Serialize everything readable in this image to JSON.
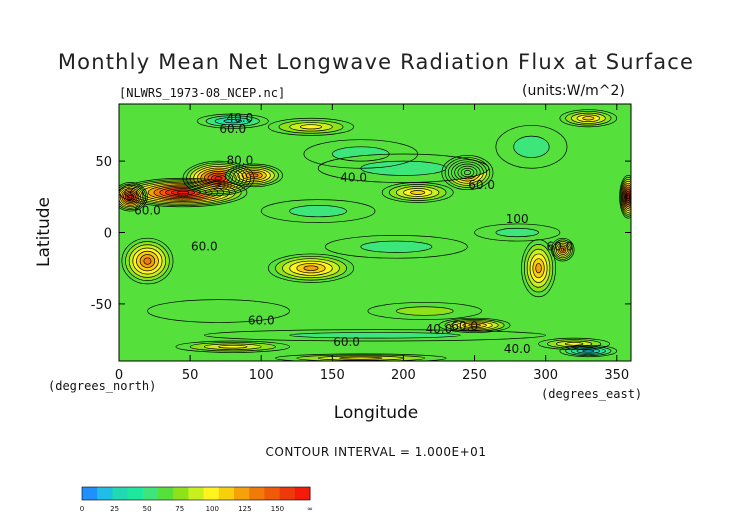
{
  "chart_data": {
    "type": "heatmap",
    "title": "Monthly Mean Net Longwave Radiation Flux at Surface",
    "subtitle_left": "[NLWRS_1973-08_NCEP.nc]",
    "subtitle_right": "(units:W/m^2)",
    "xlabel": "Longitude",
    "ylabel": "Latitude",
    "x_unit_label": "(degrees_east)",
    "y_unit_label": "(degrees_north)",
    "xlim": [
      0,
      360
    ],
    "ylim": [
      -90,
      90
    ],
    "x_ticks": [
      0,
      50,
      100,
      150,
      200,
      250,
      300,
      350
    ],
    "y_ticks": [
      -50,
      0,
      50
    ],
    "contour_interval_text": "CONTOUR INTERVAL = 1.000E+01",
    "contour_labels": [
      {
        "text": "40.0",
        "lon": 85,
        "lat": 80
      },
      {
        "text": "60.0",
        "lon": 80,
        "lat": 72
      },
      {
        "text": "80.0",
        "lon": 85,
        "lat": 50
      },
      {
        "text": "40.0",
        "lon": 165,
        "lat": 38
      },
      {
        "text": "60.0",
        "lon": 20,
        "lat": 15
      },
      {
        "text": "60.0",
        "lon": 60,
        "lat": -10
      },
      {
        "text": "60.0",
        "lon": 255,
        "lat": 33
      },
      {
        "text": "100",
        "lon": 280,
        "lat": 9
      },
      {
        "text": "60.0",
        "lon": 310,
        "lat": -10
      },
      {
        "text": "60.0",
        "lon": 100,
        "lat": -62
      },
      {
        "text": "60.0",
        "lon": 160,
        "lat": -77
      },
      {
        "text": "40.0",
        "lon": 225,
        "lat": -68
      },
      {
        "text": "60.0",
        "lon": 243,
        "lat": -66
      },
      {
        "text": "40.0",
        "lon": 280,
        "lat": -82
      }
    ],
    "features": [
      {
        "lon": 45,
        "lat": 28,
        "rx": 45,
        "ry": 10,
        "value": 150
      },
      {
        "lon": 70,
        "lat": 38,
        "rx": 25,
        "ry": 12,
        "value": 140
      },
      {
        "lon": 8,
        "lat": 25,
        "rx": 12,
        "ry": 10,
        "value": 140
      },
      {
        "lon": 95,
        "lat": 40,
        "rx": 20,
        "ry": 8,
        "value": 110
      },
      {
        "lon": 20,
        "lat": -20,
        "rx": 18,
        "ry": 16,
        "value": 115
      },
      {
        "lon": 135,
        "lat": -25,
        "rx": 30,
        "ry": 10,
        "value": 100
      },
      {
        "lon": 245,
        "lat": 42,
        "rx": 18,
        "ry": 12,
        "value": 125
      },
      {
        "lon": 210,
        "lat": 28,
        "rx": 25,
        "ry": 7,
        "value": 90
      },
      {
        "lon": 295,
        "lat": -25,
        "rx": 12,
        "ry": 20,
        "value": 105
      },
      {
        "lon": 312,
        "lat": -12,
        "rx": 8,
        "ry": 8,
        "value": 110
      },
      {
        "lon": 358,
        "lat": 25,
        "rx": 6,
        "ry": 15,
        "value": 150
      },
      {
        "lon": 250,
        "lat": -65,
        "rx": 25,
        "ry": 5,
        "value": 100
      },
      {
        "lon": 135,
        "lat": 74,
        "rx": 30,
        "ry": 6,
        "value": 85
      },
      {
        "lon": 330,
        "lat": 80,
        "rx": 20,
        "ry": 6,
        "value": 90
      },
      {
        "lon": 80,
        "lat": -80,
        "rx": 40,
        "ry": 4,
        "value": 85
      },
      {
        "lon": 170,
        "lat": -88,
        "rx": 60,
        "ry": 3,
        "value": 80
      },
      {
        "lon": 320,
        "lat": -78,
        "rx": 25,
        "ry": 4,
        "value": 85
      },
      {
        "lon": 80,
        "lat": 78,
        "rx": 25,
        "ry": 5,
        "value": 25
      },
      {
        "lon": 170,
        "lat": 55,
        "rx": 40,
        "ry": 10,
        "value": 40
      },
      {
        "lon": 200,
        "lat": 45,
        "rx": 60,
        "ry": 10,
        "value": 45
      },
      {
        "lon": 140,
        "lat": 15,
        "rx": 40,
        "ry": 8,
        "value": 45
      },
      {
        "lon": 290,
        "lat": 60,
        "rx": 25,
        "ry": 15,
        "value": 40
      },
      {
        "lon": 195,
        "lat": -10,
        "rx": 50,
        "ry": 8,
        "value": 45
      },
      {
        "lon": 280,
        "lat": 0,
        "rx": 30,
        "ry": 6,
        "value": 40
      },
      {
        "lon": 180,
        "lat": -72,
        "rx": 120,
        "ry": 4,
        "value": 40
      },
      {
        "lon": 330,
        "lat": -83,
        "rx": 20,
        "ry": 4,
        "value": 15
      },
      {
        "lon": 215,
        "lat": -55,
        "rx": 40,
        "ry": 6,
        "value": 60
      },
      {
        "lon": 70,
        "lat": -55,
        "rx": 50,
        "ry": 8,
        "value": 55
      }
    ],
    "colorbar": {
      "tick_labels": [
        "0",
        "25",
        "50",
        "75",
        "100",
        "125",
        "150",
        "∞"
      ],
      "colors": [
        "#1e90ff",
        "#1ebfe6",
        "#20d9b3",
        "#1ee8a0",
        "#3ce67a",
        "#55e03c",
        "#8ee21a",
        "#c8f01e",
        "#fff41e",
        "#f7cf0a",
        "#f5a10a",
        "#f07b08",
        "#f25a0a",
        "#ee3a0a",
        "#f51a0a"
      ]
    },
    "base_value": 55
  }
}
